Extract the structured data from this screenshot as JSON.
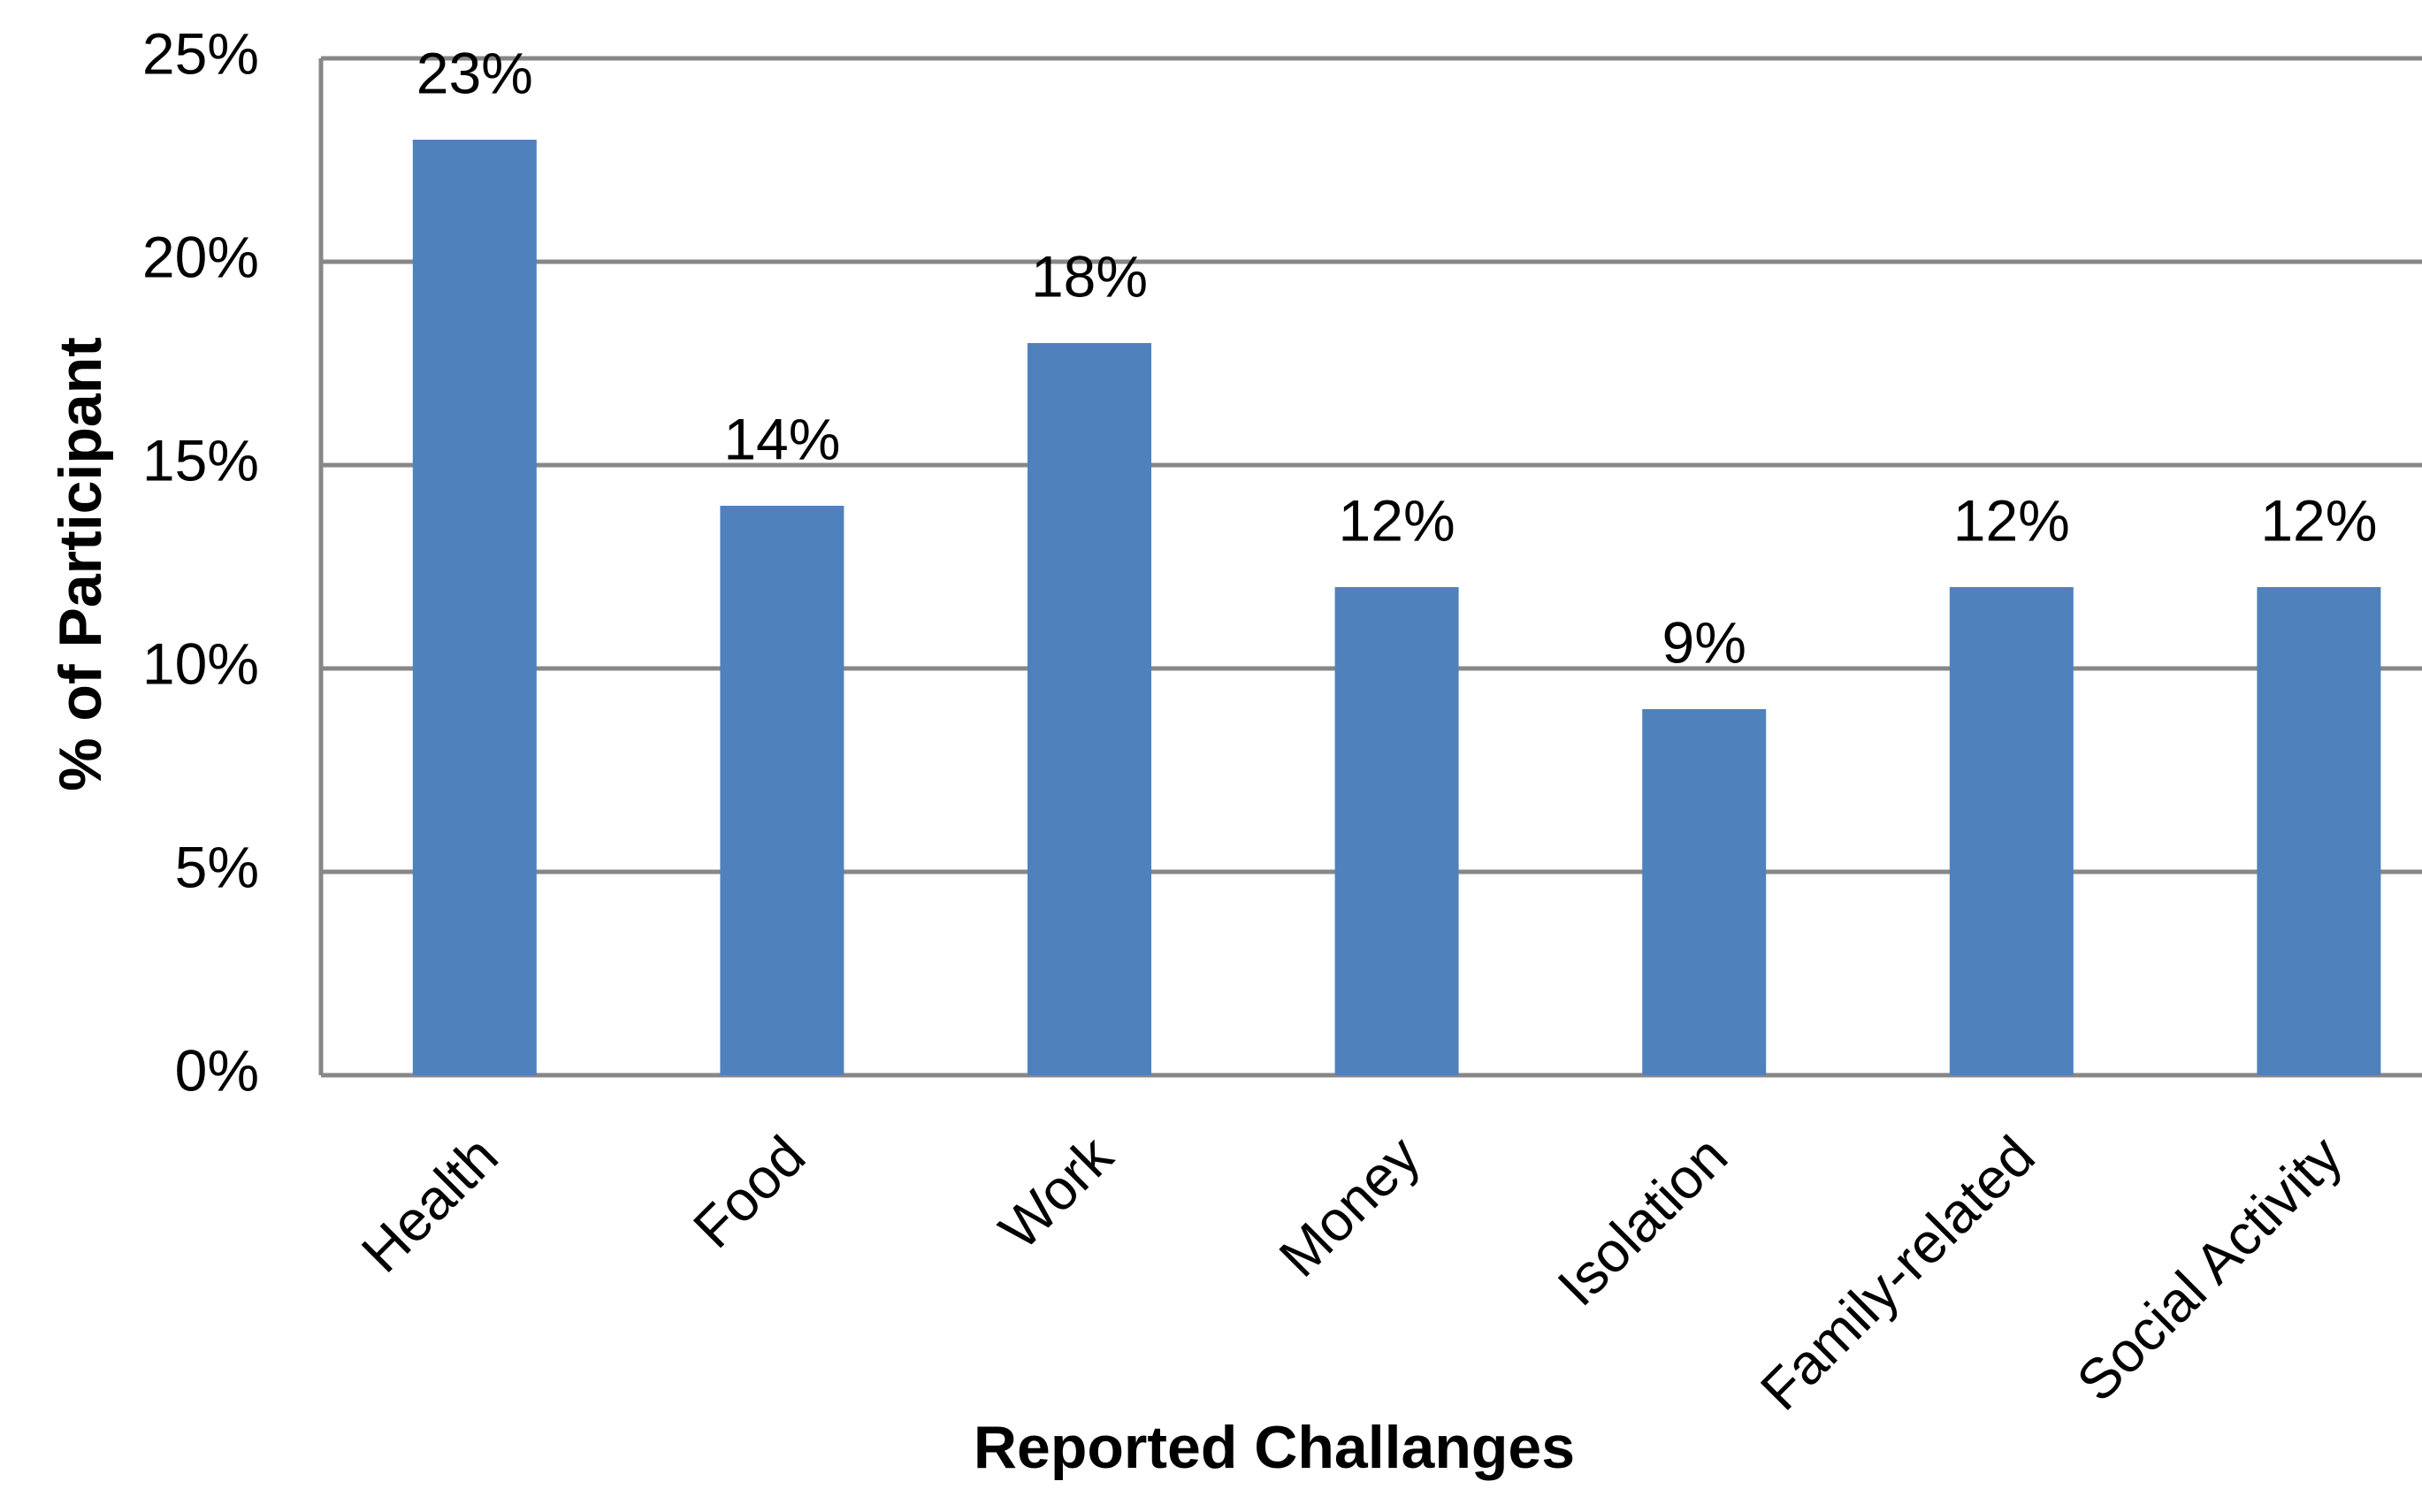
{
  "chart_data": {
    "type": "bar",
    "xlabel": "Reported Challanges",
    "ylabel": "% of Participant",
    "categories": [
      "Health",
      "Food",
      "Work",
      "Money",
      "Isolation",
      "Family-related",
      "Social Activity"
    ],
    "values": [
      23,
      14,
      18,
      12,
      9,
      12,
      12
    ],
    "value_labels": [
      "23%",
      "14%",
      "18%",
      "12%",
      "9%",
      "12%",
      "12%"
    ],
    "color": "#4f81bd",
    "ylim": [
      0,
      25
    ],
    "yticks": [
      {
        "value": 0,
        "label": "0%"
      },
      {
        "value": 5,
        "label": "5%"
      },
      {
        "value": 10,
        "label": "10%"
      },
      {
        "value": 15,
        "label": "15%"
      },
      {
        "value": 20,
        "label": "20%"
      },
      {
        "value": 25,
        "label": "25%"
      }
    ],
    "grid": true
  }
}
